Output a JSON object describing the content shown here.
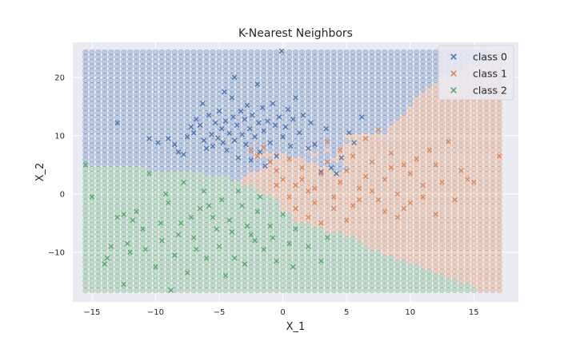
{
  "chart_data": {
    "type": "scatter",
    "title": "K-Nearest Neighbors",
    "xlabel": "X_1",
    "ylabel": "X_2",
    "xlim": [
      -16.5,
      18.5
    ],
    "ylim": [
      -18.5,
      26
    ],
    "xticks": [
      -15,
      -10,
      -5,
      0,
      5,
      10,
      15
    ],
    "yticks": [
      -10,
      0,
      10,
      20
    ],
    "grid": true,
    "legend_position": "top-right",
    "decision_grid": {
      "x_range": [
        -15.5,
        17
      ],
      "y_range": [
        -16.5,
        24.5
      ],
      "x_step": 0.5,
      "y_step": 0.8
    },
    "colors": {
      "background": "#eaeaf2",
      "class_0": "#4c72b0",
      "class_1": "#dd8452",
      "class_2": "#55a868"
    },
    "series": [
      {
        "name": "class 0",
        "points": [
          [
            -13,
            12.2
          ],
          [
            -10.5,
            9.5
          ],
          [
            -9.8,
            8.8
          ],
          [
            -9,
            9.5
          ],
          [
            -8.5,
            8.5
          ],
          [
            -8.2,
            7.2
          ],
          [
            -7.8,
            6.8
          ],
          [
            -7.5,
            9.8
          ],
          [
            -7.2,
            11.5
          ],
          [
            -7,
            10.5
          ],
          [
            -6.8,
            12.8
          ],
          [
            -6.5,
            11.8
          ],
          [
            -6.2,
            9.2
          ],
          [
            -6,
            7.8
          ],
          [
            -5.8,
            13.5
          ],
          [
            -5.6,
            10.2
          ],
          [
            -5.5,
            8.2
          ],
          [
            -5.3,
            12.2
          ],
          [
            -5.1,
            9.6
          ],
          [
            -5,
            14.2
          ],
          [
            -4.8,
            11.2
          ],
          [
            -4.7,
            8.8
          ],
          [
            -4.5,
            12.5
          ],
          [
            -4.4,
            7.5
          ],
          [
            -4.2,
            10.4
          ],
          [
            -4,
            16.5
          ],
          [
            -3.9,
            13.2
          ],
          [
            -3.8,
            9.2
          ],
          [
            -3.6,
            11.8
          ],
          [
            -3.5,
            6.2
          ],
          [
            -3.3,
            14.2
          ],
          [
            -3.2,
            10.2
          ],
          [
            -3,
            12.8
          ],
          [
            -2.9,
            8.5
          ],
          [
            -2.8,
            15.2
          ],
          [
            -2.6,
            11.2
          ],
          [
            -2.5,
            5.8
          ],
          [
            -2.4,
            13.5
          ],
          [
            -2.2,
            9.8
          ],
          [
            -2,
            18.8
          ],
          [
            -1.9,
            12.2
          ],
          [
            -1.8,
            7.2
          ],
          [
            -1.6,
            14.8
          ],
          [
            -1.5,
            10.8
          ],
          [
            -1.4,
            4.8
          ],
          [
            -1.2,
            12.5
          ],
          [
            -1,
            8.8
          ],
          [
            -0.8,
            15.5
          ],
          [
            -0.6,
            11.8
          ],
          [
            -0.5,
            6.5
          ],
          [
            -0.3,
            13.2
          ],
          [
            -0.1,
            24.5
          ],
          [
            0,
            9.8
          ],
          [
            0.2,
            11.5
          ],
          [
            0.4,
            14.5
          ],
          [
            0.6,
            8.2
          ],
          [
            0.8,
            12.8
          ],
          [
            1,
            16.5
          ],
          [
            1.3,
            10.5
          ],
          [
            1.6,
            13.5
          ],
          [
            2,
            7.8
          ],
          [
            2.2,
            12.2
          ],
          [
            2.5,
            8.5
          ],
          [
            3,
            3.8
          ],
          [
            3.4,
            11.2
          ],
          [
            3.8,
            4.5
          ],
          [
            4.2,
            3.5
          ],
          [
            4.6,
            6.2
          ],
          [
            5.2,
            10.5
          ],
          [
            5.6,
            8.8
          ],
          [
            6.2,
            13.2
          ],
          [
            -3.8,
            20
          ],
          [
            -4.6,
            17.5
          ],
          [
            -6.3,
            15.5
          ]
        ]
      },
      {
        "name": "class 1",
        "points": [
          [
            -2.5,
            7.5
          ],
          [
            -2,
            6.5
          ],
          [
            -1.5,
            8
          ],
          [
            -1,
            5.5
          ],
          [
            -0.5,
            4
          ],
          [
            0,
            2.5
          ],
          [
            0.5,
            6
          ],
          [
            1,
            1.5
          ],
          [
            1.5,
            4.5
          ],
          [
            2,
            0.5
          ],
          [
            2.5,
            -1.5
          ],
          [
            3,
            3.5
          ],
          [
            3.5,
            5.5
          ],
          [
            4,
            -0.5
          ],
          [
            4.5,
            2
          ],
          [
            5,
            4
          ],
          [
            5.5,
            -2
          ],
          [
            6,
            1
          ],
          [
            6.5,
            3
          ],
          [
            7,
            5.5
          ],
          [
            7.5,
            -1
          ],
          [
            8,
            2.5
          ],
          [
            8.5,
            4.5
          ],
          [
            9,
            0
          ],
          [
            9.5,
            -2.5
          ],
          [
            10,
            3.5
          ],
          [
            10.5,
            6
          ],
          [
            11,
            -0.5
          ],
          [
            11.5,
            7.5
          ],
          [
            12,
            -3.5
          ],
          [
            12.5,
            2
          ],
          [
            13,
            9
          ],
          [
            13.5,
            -1
          ],
          [
            14,
            4
          ],
          [
            14.5,
            2.5
          ],
          [
            15,
            2
          ],
          [
            17,
            6.5
          ],
          [
            3.5,
            9
          ],
          [
            4.5,
            7.5
          ],
          [
            5.5,
            6.5
          ],
          [
            6.5,
            9.5
          ],
          [
            7.5,
            11
          ],
          [
            8.5,
            7
          ],
          [
            9.5,
            5
          ],
          [
            1,
            -2.5
          ],
          [
            2,
            -4
          ],
          [
            3,
            -5
          ],
          [
            4,
            -2.5
          ],
          [
            5,
            -4.5
          ],
          [
            6,
            -1
          ],
          [
            7,
            0.5
          ],
          [
            8,
            -3
          ],
          [
            9,
            -4
          ],
          [
            10,
            -1.5
          ],
          [
            11,
            1.5
          ],
          [
            12,
            5
          ],
          [
            0.5,
            -0.5
          ],
          [
            -0.5,
            1.5
          ],
          [
            1.5,
            2.5
          ],
          [
            2.5,
            1
          ]
        ]
      },
      {
        "name": "class 2",
        "points": [
          [
            -15.5,
            5
          ],
          [
            -15,
            -0.5
          ],
          [
            -14,
            -12
          ],
          [
            -13.5,
            -9
          ],
          [
            -13,
            -4
          ],
          [
            -12.5,
            -15.5
          ],
          [
            -12,
            -10
          ],
          [
            -11.5,
            -3
          ],
          [
            -11,
            -6
          ],
          [
            -10.5,
            3.5
          ],
          [
            -10,
            -12.5
          ],
          [
            -9.5,
            -8
          ],
          [
            -9,
            -1.5
          ],
          [
            -8.5,
            -10.5
          ],
          [
            -8,
            -5
          ],
          [
            -7.5,
            -13.5
          ],
          [
            -7,
            -7.5
          ],
          [
            -6.5,
            -2.5
          ],
          [
            -6,
            -11
          ],
          [
            -5.5,
            -4
          ],
          [
            -5,
            -9
          ],
          [
            -4.5,
            -14
          ],
          [
            -4,
            -6.5
          ],
          [
            -3.5,
            0.5
          ],
          [
            -3,
            -12
          ],
          [
            -2.5,
            -7
          ],
          [
            -2,
            -3
          ],
          [
            -1.5,
            -9.5
          ],
          [
            -1,
            -5.5
          ],
          [
            -0.5,
            -11.5
          ],
          [
            0,
            -3.5
          ],
          [
            0.5,
            -8.5
          ],
          [
            1,
            -6
          ],
          [
            2,
            -9
          ],
          [
            3,
            -11.5
          ],
          [
            3.5,
            -7.5
          ],
          [
            -8.8,
            -16.5
          ],
          [
            -11.8,
            -4.5
          ],
          [
            -12.5,
            -3.5
          ],
          [
            -9.2,
            0
          ],
          [
            -7.8,
            2
          ],
          [
            -6.2,
            0.5
          ],
          [
            -4.8,
            -1
          ],
          [
            -3.2,
            -2
          ],
          [
            -1.8,
            -0.5
          ],
          [
            -13.8,
            -11
          ],
          [
            -12.2,
            -8.5
          ],
          [
            -10.8,
            -9.5
          ],
          [
            -9.6,
            -5
          ],
          [
            -8.2,
            -7
          ],
          [
            -6.8,
            -9.5
          ],
          [
            -5.2,
            -6
          ],
          [
            -3.8,
            -11
          ],
          [
            -2.2,
            -8
          ],
          [
            -0.8,
            -7.5
          ],
          [
            0.8,
            -12.5
          ],
          [
            -7.2,
            -4
          ],
          [
            -5.8,
            -2
          ],
          [
            -4.2,
            -4.5
          ],
          [
            -2.8,
            -5.5
          ]
        ]
      }
    ]
  }
}
